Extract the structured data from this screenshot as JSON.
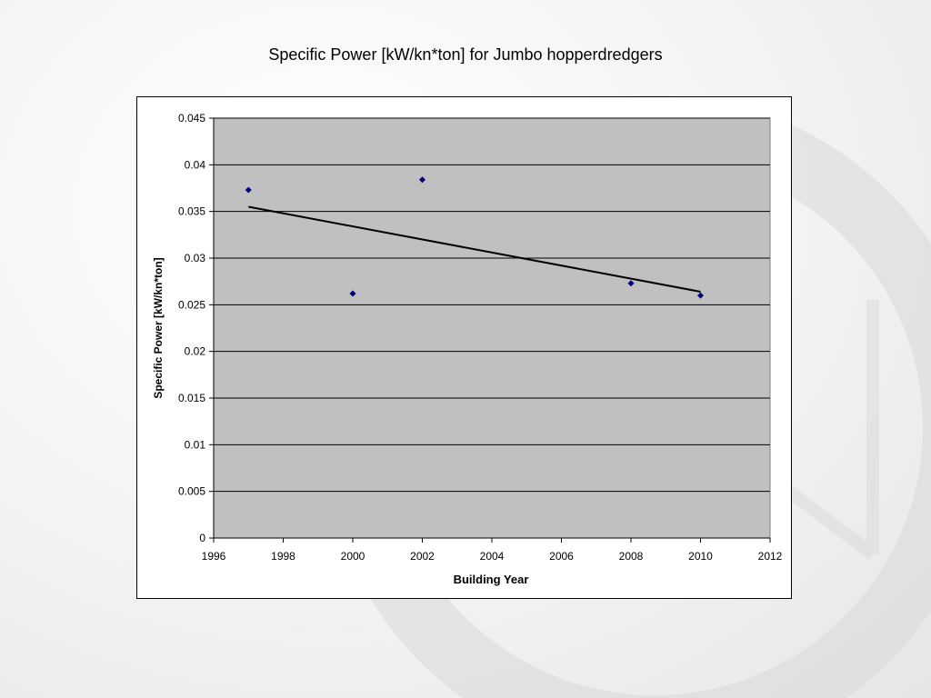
{
  "chart_data": {
    "type": "scatter",
    "title": "Specific Power [kW/kn*ton] for Jumbo hopperdredgers",
    "xlabel": "Building Year",
    "ylabel": "Specific Power [kW/kn*ton]",
    "xlim": [
      1996,
      2012
    ],
    "ylim": [
      0,
      0.045
    ],
    "x_ticks": [
      "1996",
      "1998",
      "2000",
      "2002",
      "2004",
      "2006",
      "2008",
      "2010",
      "2012"
    ],
    "y_ticks": [
      "0",
      "0.005",
      "0.01",
      "0.015",
      "0.02",
      "0.025",
      "0.03",
      "0.035",
      "0.04",
      "0.045"
    ],
    "grid": "horizontal",
    "plot_background": "#c0c0c0",
    "marker_color": "#000080",
    "series": [
      {
        "points": [
          {
            "x": 1997,
            "y": 0.0373
          },
          {
            "x": 2000,
            "y": 0.0262
          },
          {
            "x": 2002,
            "y": 0.0384
          },
          {
            "x": 2008,
            "y": 0.0273
          },
          {
            "x": 2010,
            "y": 0.026
          }
        ]
      }
    ],
    "trendline": {
      "type": "linear",
      "color": "#000000",
      "points": [
        {
          "x": 1997,
          "y": 0.0355
        },
        {
          "x": 2010,
          "y": 0.0264
        }
      ]
    }
  }
}
